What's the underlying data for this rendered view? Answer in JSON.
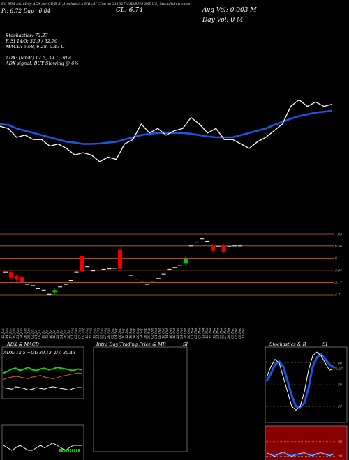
{
  "header": {
    "line1": "EG 9D4 IntraDay ADX,MACD,B  SI,Stochastics,MR  (SI Charts) 511327  CHARMS INDUS) MunafaSutra.com",
    "prev_label": "Pl: 6.72  Day : 6.84",
    "cl_label": "CL: 6.74",
    "avg_vol": "Avg Vol: 0.003 M",
    "day_vol": "Day Vol: 0   M"
  },
  "indicators": {
    "stoch": "Stochastics: 72.27",
    "rsi": "R                 SI 14/5: 32.9 / 32.76",
    "macd": "MACD: 6.68, 6.28, 0.43 C",
    "adx": "ADX:                         (MGR) 12.5, 39.1, 30.4",
    "signal": "ADX  signal:                          BUY Slowing @ 6%"
  },
  "price_levels": [
    "7.03",
    "6.58",
    "6.11",
    "5.64",
    "5.17",
    "4.7"
  ],
  "dates": [
    "12 Jun",
    "14 Jun",
    "17 Jun",
    "19 Jun",
    "21 Jun",
    "24 Jun",
    "26 Jun",
    "28 Jun",
    "02 Jul",
    "04 Jul",
    "08 Jul",
    "10 Jul",
    "12 Jul",
    "16 Jul",
    "18 Jul",
    "22 Jul",
    "24 Jul",
    "26 Jul",
    "30 Jul",
    "01 Aug",
    "05 Aug",
    "07 Aug",
    "09 Aug",
    "13 Aug",
    "15 Aug",
    "19 Aug",
    "21 Aug",
    "23 Aug",
    "27 Aug",
    "29 Aug",
    "02 Sep",
    "04 Sep",
    "06 Sep",
    "10 Sep",
    "12 Sep",
    "16 Sep",
    "18 Sep",
    "20 Sep",
    "24 Sep",
    "26 Sep",
    "30 Sep",
    "02 Oct",
    "04 Oct",
    "08 Oct",
    "10 Oct",
    "14 Oct",
    "16 Oct",
    "18 Oct",
    "22 Oct",
    "24 Oct",
    "28 Oct",
    "30 Oct",
    "01 Nov",
    "05 Nov",
    "07 Nov",
    "11 Nov",
    "13 Nov",
    "15 Nov",
    "19 Nov",
    "21 Nov",
    "25 Nov",
    "27 Nov",
    "29 Nov",
    "03 Dec",
    "05 Dec",
    "09 Dec",
    "11 Dec"
  ],
  "panels": {
    "adx_title": "ADX  & MACD",
    "adx_values": "ADX: 12.5  +DY: 39.13  -DY: 30.43",
    "intraday_title": "Intra  Day Trading Price  & MR",
    "intraday_si": "SI",
    "stoch_title": "Stochastics & R",
    "stoch_si": "SI",
    "stoch_ticks": [
      "80",
      "50",
      "20"
    ],
    "stoch_value": "72.27",
    "rsi_ticks": [
      "50",
      "30",
      "20"
    ]
  },
  "colors": {
    "bull": "#00cc00",
    "bear": "#ee0000",
    "ma": "#1a55e0",
    "level": "#cc6633"
  },
  "chart_data": {
    "type": "line",
    "price_axis": [
      4.7,
      7.03
    ],
    "candles": [
      {
        "o": 5.58,
        "c": 5.58,
        "d": "u"
      },
      {
        "o": 5.58,
        "c": 5.35,
        "d": "d"
      },
      {
        "o": 5.42,
        "c": 5.28,
        "d": "d"
      },
      {
        "o": 5.4,
        "c": 5.18,
        "d": "d"
      },
      {
        "o": 5.1,
        "c": 5.1,
        "d": "u"
      },
      {
        "o": 5.05,
        "c": 5.05,
        "d": "u"
      },
      {
        "o": 4.95,
        "c": 4.95,
        "d": "u"
      },
      {
        "o": 4.88,
        "c": 4.88,
        "d": "u"
      },
      {
        "o": 4.72,
        "c": 4.72,
        "d": "u"
      },
      {
        "o": 4.8,
        "c": 4.88,
        "d": "u"
      },
      {
        "o": 5.0,
        "c": 5.0,
        "d": "u"
      },
      {
        "o": 5.1,
        "c": 5.1,
        "d": "u"
      },
      {
        "o": 5.25,
        "c": 5.25,
        "d": "u"
      },
      {
        "o": 5.58,
        "c": 5.58,
        "d": "u"
      },
      {
        "o": 6.2,
        "c": 5.6,
        "d": "d"
      },
      {
        "o": 5.78,
        "c": 5.78,
        "d": "u"
      },
      {
        "o": 5.62,
        "c": 5.62,
        "d": "u"
      },
      {
        "o": 5.65,
        "c": 5.65,
        "d": "u"
      },
      {
        "o": 5.68,
        "c": 5.68,
        "d": "u"
      },
      {
        "o": 5.7,
        "c": 5.7,
        "d": "u"
      },
      {
        "o": 5.72,
        "c": 5.72,
        "d": "u"
      },
      {
        "o": 6.45,
        "c": 5.7,
        "d": "d"
      },
      {
        "o": 5.65,
        "c": 5.65,
        "d": "u"
      },
      {
        "o": 5.45,
        "c": 5.45,
        "d": "u"
      },
      {
        "o": 5.3,
        "c": 5.3,
        "d": "u"
      },
      {
        "o": 5.2,
        "c": 5.2,
        "d": "u"
      },
      {
        "o": 5.1,
        "c": 5.1,
        "d": "u"
      },
      {
        "o": 5.2,
        "c": 5.2,
        "d": "u"
      },
      {
        "o": 5.32,
        "c": 5.32,
        "d": "u"
      },
      {
        "o": 5.5,
        "c": 5.5,
        "d": "u"
      },
      {
        "o": 5.68,
        "c": 5.68,
        "d": "u"
      },
      {
        "o": 5.75,
        "c": 5.75,
        "d": "u"
      },
      {
        "o": 5.82,
        "c": 5.82,
        "d": "u"
      },
      {
        "o": 5.9,
        "c": 6.1,
        "d": "u"
      },
      {
        "o": 6.58,
        "c": 6.58,
        "d": "u"
      },
      {
        "o": 6.7,
        "c": 6.7,
        "d": "u"
      },
      {
        "o": 6.85,
        "c": 6.85,
        "d": "u"
      },
      {
        "o": 6.75,
        "c": 6.75,
        "d": "u"
      },
      {
        "o": 6.6,
        "c": 6.4,
        "d": "d"
      },
      {
        "o": 6.55,
        "c": 6.55,
        "d": "u"
      },
      {
        "o": 6.58,
        "c": 6.36,
        "d": "d"
      },
      {
        "o": 6.55,
        "c": 6.55,
        "d": "u"
      },
      {
        "o": 6.58,
        "c": 6.58,
        "d": "u"
      },
      {
        "o": 6.58,
        "c": 6.58,
        "d": "u"
      }
    ],
    "close_line": [
      6.35,
      6.3,
      6.1,
      6.15,
      6.05,
      6.05,
      5.9,
      5.95,
      5.85,
      5.7,
      5.75,
      5.7,
      5.55,
      5.65,
      5.6,
      5.95,
      6.05,
      6.4,
      6.2,
      6.3,
      6.15,
      6.25,
      6.3,
      6.55,
      6.4,
      6.2,
      6.3,
      6.05,
      6.05,
      5.95,
      5.85,
      6.0,
      6.1,
      6.25,
      6.4,
      6.8,
      6.95,
      6.8,
      6.9,
      6.8,
      6.85
    ],
    "ma_line": [
      6.4,
      6.38,
      6.3,
      6.25,
      6.2,
      6.15,
      6.1,
      6.05,
      6.0,
      5.98,
      5.95,
      5.95,
      5.96,
      5.98,
      6.0,
      6.05,
      6.1,
      6.15,
      6.18,
      6.2,
      6.2,
      6.2,
      6.2,
      6.18,
      6.15,
      6.12,
      6.1,
      6.1,
      6.1,
      6.15,
      6.2,
      6.25,
      6.3,
      6.38,
      6.45,
      6.52,
      6.58,
      6.62,
      6.66,
      6.68,
      6.7
    ],
    "adx_green": [
      30,
      32,
      35,
      36,
      33,
      35,
      37,
      34,
      33,
      35,
      36,
      34,
      35,
      37,
      36,
      35,
      34,
      33,
      35,
      34
    ],
    "adx_orange": [
      22,
      24,
      25,
      26,
      25,
      24,
      23,
      25,
      26,
      27,
      25,
      24,
      23,
      24,
      26,
      27,
      28,
      29,
      30,
      30
    ],
    "adx_white": [
      12,
      11,
      10,
      13,
      12,
      11,
      9,
      10,
      12,
      11,
      10,
      12,
      13,
      12,
      11,
      10,
      9,
      11,
      12,
      12
    ],
    "macd_white": [
      6,
      5,
      4,
      5,
      6,
      5,
      4,
      4,
      5,
      6,
      5,
      6,
      7,
      6,
      5,
      4,
      5,
      6,
      6,
      6
    ],
    "stoch_k": [
      60,
      75,
      85,
      80,
      60,
      40,
      20,
      15,
      20,
      40,
      70,
      90,
      95,
      90,
      80,
      70,
      72
    ],
    "stoch_d": [
      55,
      65,
      78,
      82,
      75,
      55,
      35,
      20,
      18,
      25,
      45,
      75,
      88,
      92,
      86,
      78,
      74
    ],
    "rsi_blue": [
      34,
      33,
      32,
      33,
      34,
      33,
      31,
      32,
      33,
      34,
      33,
      32,
      33,
      34,
      33,
      32,
      33
    ],
    "rsi_white": [
      35,
      32,
      30,
      34,
      36,
      32,
      30,
      33,
      34,
      35,
      32,
      31,
      34,
      35,
      33,
      31,
      33
    ]
  }
}
